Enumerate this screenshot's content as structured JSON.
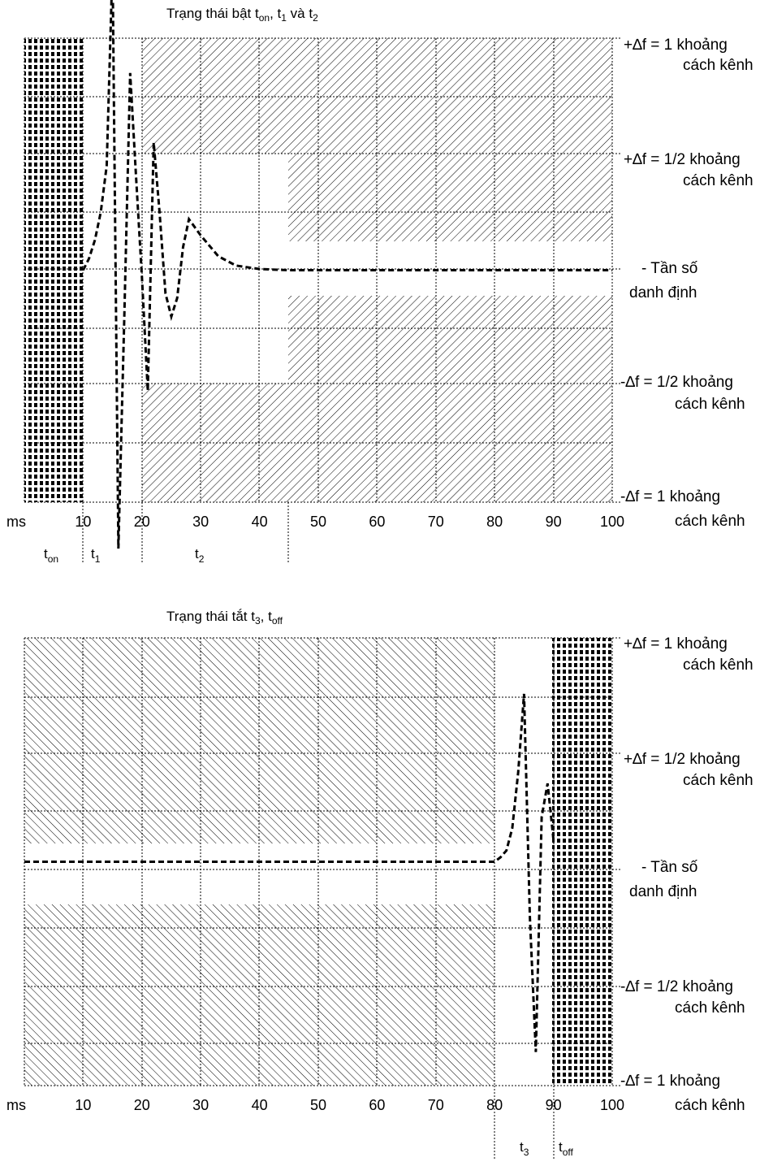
{
  "top": {
    "title": {
      "pre": "Trạng thái bật t",
      "s1": "on",
      "mid1": ", t",
      "s2": "1",
      "mid2": " và t",
      "s3": "2"
    },
    "ms_label": "ms",
    "ticks": [
      "10",
      "20",
      "30",
      "40",
      "50",
      "60",
      "70",
      "80",
      "90",
      "100"
    ],
    "periods": [
      {
        "base": "t",
        "sub": "on"
      },
      {
        "base": "t",
        "sub": "1"
      },
      {
        "base": "t",
        "sub": "2"
      }
    ]
  },
  "bottom": {
    "title": {
      "pre": "Trạng thái tắt t",
      "s1": "3",
      "mid1": ", t",
      "s2": "off"
    },
    "ms_label": "ms",
    "ticks": [
      "10",
      "20",
      "30",
      "40",
      "50",
      "60",
      "70",
      "80",
      "90",
      "100"
    ],
    "periods": [
      {
        "base": "t",
        "sub": "3"
      },
      {
        "base": "t",
        "sub": "off"
      }
    ]
  },
  "side_labels": [
    {
      "line1": "+∆f = 1 khoảng",
      "line2": "cách kênh"
    },
    {
      "line1": "+∆f = 1/2 khoảng",
      "line2": "cách kênh"
    },
    {
      "line1": "- Tần số",
      "line2": "danh định"
    },
    {
      "line1": "-∆f = 1/2 khoảng",
      "line2": "cách kênh"
    },
    {
      "line1": "-∆f = 1 khoảng",
      "line2": "cách kênh"
    }
  ],
  "chart_data": [
    {
      "type": "line",
      "title": "Trạng thái bật ton, t1 và t2",
      "xlabel": "ms",
      "xlim": [
        0,
        100
      ],
      "x_ticks": [
        10,
        20,
        30,
        40,
        50,
        60,
        70,
        80,
        90,
        100
      ],
      "y_levels": [
        "+∆f = 1 khoảng cách kênh",
        "+∆f = 1/2 khoảng cách kênh",
        "- Tần số danh định",
        "-∆f = 1/2 khoảng cách kênh",
        "-∆f = 1 khoảng cách kênh"
      ],
      "ylim": [
        -1,
        1
      ],
      "grid": true,
      "periods": [
        {
          "name": "ton",
          "from": 0,
          "to": 10
        },
        {
          "name": "t1",
          "from": 10,
          "to": 20
        },
        {
          "name": "t2",
          "from": 20,
          "to": 45
        }
      ],
      "forbidden_regions": [
        {
          "x": [
            20,
            100
          ],
          "y": [
            0.5,
            1
          ]
        },
        {
          "x": [
            20,
            100
          ],
          "y": [
            -1,
            -0.5
          ]
        },
        {
          "x": [
            45,
            100
          ],
          "y": [
            0.1,
            0.5
          ]
        },
        {
          "x": [
            45,
            100
          ],
          "y": [
            -0.5,
            -0.1
          ]
        }
      ],
      "series": [
        {
          "x": [
            10,
            11,
            12,
            13,
            14,
            15,
            16,
            17,
            18,
            19,
            20,
            21,
            22,
            23,
            24,
            25,
            26,
            27,
            28,
            30,
            33,
            36,
            40,
            45,
            60,
            80,
            100
          ],
          "y": [
            0,
            0.05,
            0.13,
            0.25,
            0.45,
            1.32,
            -1.2,
            -0.2,
            0.85,
            0.4,
            -0.03,
            -0.52,
            0.55,
            0.25,
            -0.1,
            -0.2,
            -0.12,
            0.1,
            0.22,
            0.15,
            0.06,
            0.02,
            0.005,
            0,
            0,
            0,
            0
          ]
        }
      ]
    },
    {
      "type": "line",
      "title": "Trạng thái tắt t3, toff",
      "xlabel": "ms",
      "xlim": [
        0,
        100
      ],
      "x_ticks": [
        10,
        20,
        30,
        40,
        50,
        60,
        70,
        80,
        90,
        100
      ],
      "y_levels": [
        "+∆f = 1 khoảng cách kênh",
        "+∆f = 1/2 khoảng cách kênh",
        "- Tần số danh định",
        "-∆f = 1/2 khoảng cách kênh",
        "-∆f = 1 khoảng cách kênh"
      ],
      "ylim": [
        -1,
        1
      ],
      "grid": true,
      "periods": [
        {
          "name": "t3",
          "from": 80,
          "to": 90
        },
        {
          "name": "toff",
          "from": 90,
          "to": 100
        }
      ],
      "forbidden_regions": [
        {
          "x": [
            0,
            80
          ],
          "y": [
            0.15,
            1
          ]
        },
        {
          "x": [
            0,
            80
          ],
          "y": [
            -1,
            -0.15
          ]
        }
      ],
      "series": [
        {
          "x": [
            0,
            20,
            40,
            60,
            80,
            81,
            82,
            83,
            84,
            85,
            86,
            87,
            88,
            89,
            90
          ],
          "y": [
            0,
            0,
            0,
            0,
            0,
            0.02,
            0.05,
            0.15,
            0.4,
            0.75,
            -0.25,
            -0.85,
            0.2,
            0.35,
            0.1
          ]
        }
      ]
    }
  ]
}
